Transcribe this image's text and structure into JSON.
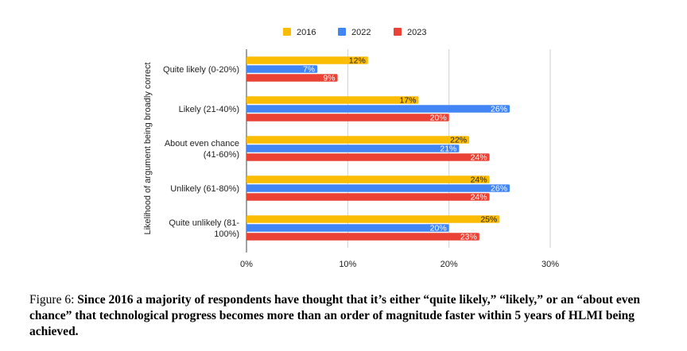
{
  "chart_data": {
    "type": "bar",
    "orientation": "horizontal",
    "title": "",
    "xlabel": "",
    "ylabel": "Likelihood of argument being broadly correct",
    "categories": [
      [
        "Quite likely (0-20%)"
      ],
      [
        "Likely (21-40%)"
      ],
      [
        "About even chance",
        "(41-60%)"
      ],
      [
        "Unlikely (61-80%)"
      ],
      [
        "Quite unlikely (81-",
        "100%)"
      ]
    ],
    "series": [
      {
        "name": "2016",
        "color": "#FBBC04",
        "label_color": "#222222",
        "values": [
          12,
          17,
          22,
          24,
          25
        ]
      },
      {
        "name": "2022",
        "color": "#4285F4",
        "label_color": "#ffffff",
        "values": [
          7,
          26,
          21,
          26,
          20
        ]
      },
      {
        "name": "2023",
        "color": "#EA4335",
        "label_color": "#ffffff",
        "values": [
          9,
          20,
          24,
          24,
          23
        ]
      }
    ],
    "value_suffix": "%",
    "xlim": [
      0,
      30
    ],
    "xticks": [
      "0%",
      "10%",
      "20%",
      "30%"
    ],
    "xtick_values": [
      0,
      10,
      20,
      30
    ],
    "grid": true,
    "legend": "top-center"
  },
  "caption": {
    "prefix": "Figure 6: ",
    "bold": "Since 2016 a majority of respondents have thought that it’s either “quite likely,” “likely,” or an “about even chance” that technological progress becomes more than an order of magnitude faster within 5 years of HLMI being achieved."
  }
}
